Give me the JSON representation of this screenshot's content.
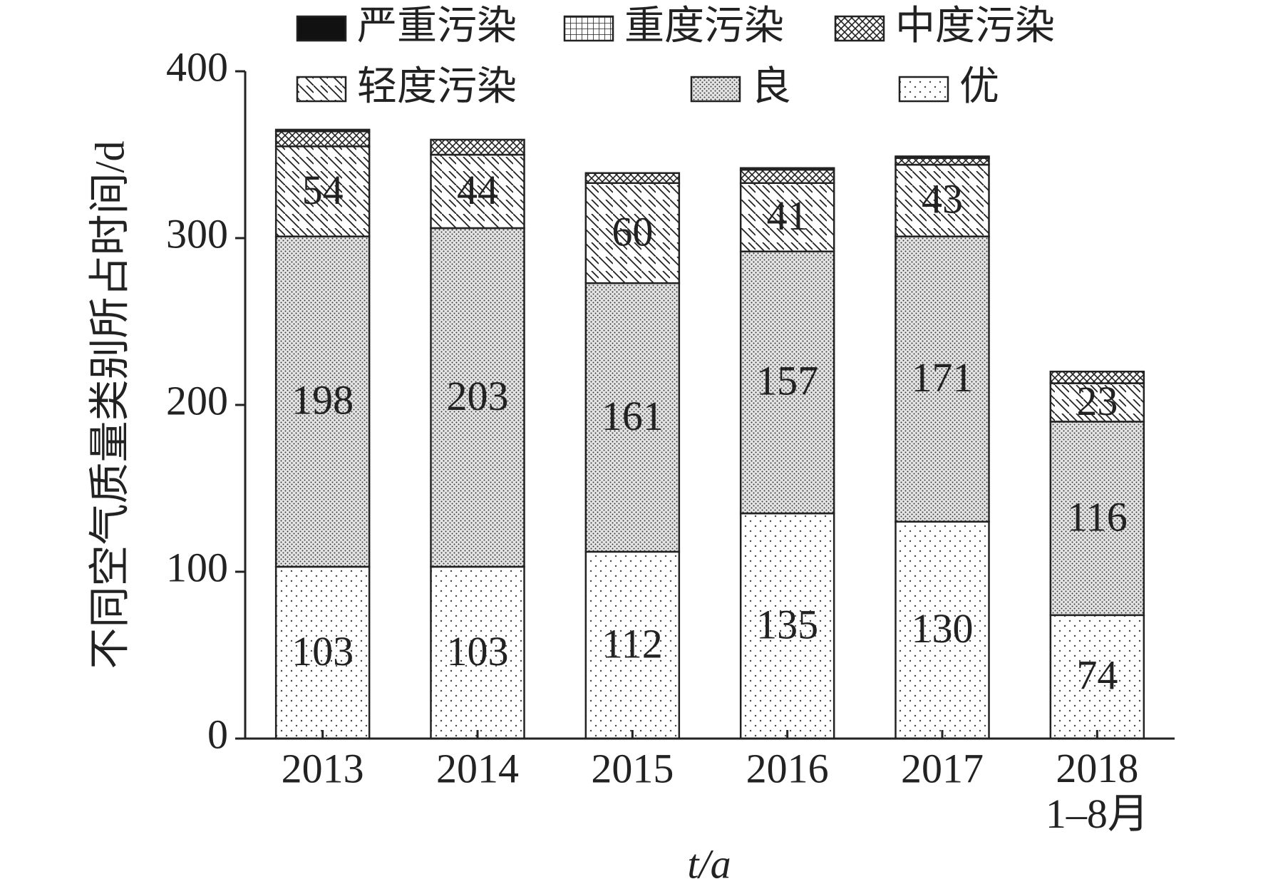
{
  "chart_data": {
    "type": "stacked_bar",
    "y_label": "不同空气质量类别所占时间/d",
    "x_label": "t/a",
    "categories": [
      "2013",
      "2014",
      "2015",
      "2016",
      "2017",
      "2018\n1–8月"
    ],
    "ylim": [
      0,
      400
    ],
    "yticks": [
      0,
      100,
      200,
      300,
      400
    ],
    "series": [
      {
        "name": "优",
        "color": "url(#p-you)",
        "data_labels": true,
        "values": [
          103,
          103,
          112,
          135,
          130,
          74
        ]
      },
      {
        "name": "良",
        "color": "url(#p-liang)",
        "data_labels": true,
        "values": [
          198,
          203,
          161,
          157,
          171,
          116
        ]
      },
      {
        "name": "轻度污染",
        "color": "url(#p-qing)",
        "data_labels": true,
        "values": [
          54,
          44,
          60,
          41,
          43,
          23
        ]
      },
      {
        "name": "中度污染",
        "color": "url(#p-zhong)",
        "data_labels": false,
        "values": [
          9,
          9,
          6,
          8,
          4,
          7
        ]
      },
      {
        "name": "重度污染",
        "color": "url(#p-zhongdu)",
        "data_labels": false,
        "values": [
          1,
          0,
          0,
          1,
          1,
          0
        ]
      },
      {
        "name": "严重污染",
        "color": "#111",
        "data_labels": false,
        "values": [
          0,
          0,
          0,
          0,
          0,
          0
        ]
      }
    ]
  }
}
